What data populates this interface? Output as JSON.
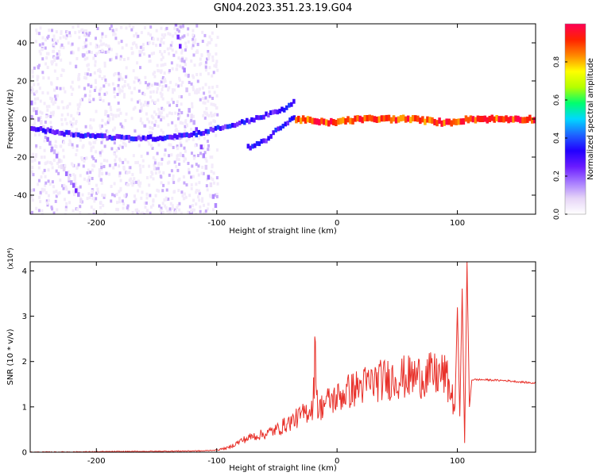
{
  "title": "GN04.2023.351.23.19.G04",
  "colors": {
    "snr_line": "#e8312a",
    "background": "#ffffff",
    "axis": "#000000",
    "colorbar": [
      "#ffffff",
      "#e6d5f7",
      "#a77bff",
      "#6a1bff",
      "#2200ff",
      "#1e64ff",
      "#00d8ff",
      "#00ff6e",
      "#b4ff00",
      "#ffff00",
      "#ff8800",
      "#ff2200",
      "#ff0055"
    ]
  },
  "chart_data": [
    {
      "type": "heatmap",
      "title": "",
      "xlabel": "Height of straight line (km)",
      "ylabel": "Frequency (Hz)",
      "xlim": [
        -255,
        165
      ],
      "ylim": [
        -50,
        50
      ],
      "xticks": [
        -200,
        -100,
        0,
        100
      ],
      "yticks": [
        -40,
        -20,
        0,
        20,
        40
      ],
      "colorbar": {
        "label": "Normalized spectral amplitude",
        "range": [
          0,
          1
        ],
        "ticks": [
          0.0,
          0.2,
          0.4,
          0.6,
          0.8
        ]
      },
      "features": [
        {
          "name": "scatter_cloud",
          "x_range": [
            -255,
            -100
          ],
          "y_range": [
            -50,
            50
          ],
          "amplitude": 0.05
        },
        {
          "name": "descending_curve_left",
          "points": [
            [
              -255,
              8
            ],
            [
              -245,
              -5
            ],
            [
              -238,
              -15
            ],
            [
              -230,
              -25
            ],
            [
              -220,
              -35
            ],
            [
              -212,
              -45
            ]
          ],
          "amplitude": 0.15
        },
        {
          "name": "curved_band",
          "points": [
            [
              -135,
              50
            ],
            [
              -128,
              25
            ],
            [
              -124,
              5
            ],
            [
              -118,
              -5
            ],
            [
              -112,
              -20
            ],
            [
              -106,
              -35
            ],
            [
              -100,
              -50
            ]
          ],
          "amplitude": 0.15
        },
        {
          "name": "main_trace_rising",
          "points": [
            [
              -255,
              -5
            ],
            [
              -220,
              -8
            ],
            [
              -180,
              -10
            ],
            [
              -150,
              -10
            ],
            [
              -120,
              -8
            ],
            [
              -100,
              -5
            ],
            [
              -80,
              -2
            ],
            [
              -60,
              2
            ],
            [
              -45,
              5
            ],
            [
              -35,
              10
            ]
          ],
          "amplitude": 0.3
        },
        {
          "name": "lower_branch",
          "points": [
            [
              -75,
              -15
            ],
            [
              -62,
              -12
            ],
            [
              -52,
              -6
            ],
            [
              -42,
              -2
            ],
            [
              -35,
              2
            ]
          ],
          "amplitude": 0.3
        },
        {
          "name": "flat_carrier",
          "points": [
            [
              -35,
              0
            ],
            [
              -10,
              -2
            ],
            [
              20,
              0
            ],
            [
              60,
              0
            ],
            [
              90,
              -2
            ],
            [
              110,
              0
            ],
            [
              165,
              0
            ]
          ],
          "amplitude": 0.9
        }
      ]
    },
    {
      "type": "line",
      "title": "",
      "xlabel": "Height of straight line (km)",
      "ylabel": "SNR (10 * v/v)",
      "y_multiplier": "(x10⁴)",
      "xlim": [
        -255,
        165
      ],
      "ylim": [
        0,
        4.2
      ],
      "xticks": [
        -200,
        -100,
        0,
        100
      ],
      "yticks": [
        0,
        1,
        2,
        3,
        4
      ],
      "series": [
        {
          "x": [
            -255,
            -200,
            -150,
            -110,
            -100,
            -90,
            -80,
            -70,
            -60,
            -50,
            -40,
            -30,
            -20,
            -18,
            -16,
            -10,
            0,
            10,
            20,
            30,
            40,
            50,
            60,
            70,
            80,
            90,
            98,
            100,
            102,
            104,
            106,
            108,
            110,
            112,
            120,
            140,
            165
          ],
          "y": [
            0.0,
            0.01,
            0.02,
            0.03,
            0.05,
            0.1,
            0.25,
            0.35,
            0.4,
            0.5,
            0.65,
            0.8,
            1.0,
            2.35,
            0.9,
            1.1,
            1.2,
            1.35,
            1.45,
            1.55,
            1.6,
            1.65,
            1.65,
            1.68,
            1.7,
            1.7,
            1.0,
            3.2,
            0.8,
            3.6,
            0.2,
            4.2,
            1.0,
            1.6,
            1.6,
            1.58,
            1.52
          ]
        }
      ]
    }
  ]
}
